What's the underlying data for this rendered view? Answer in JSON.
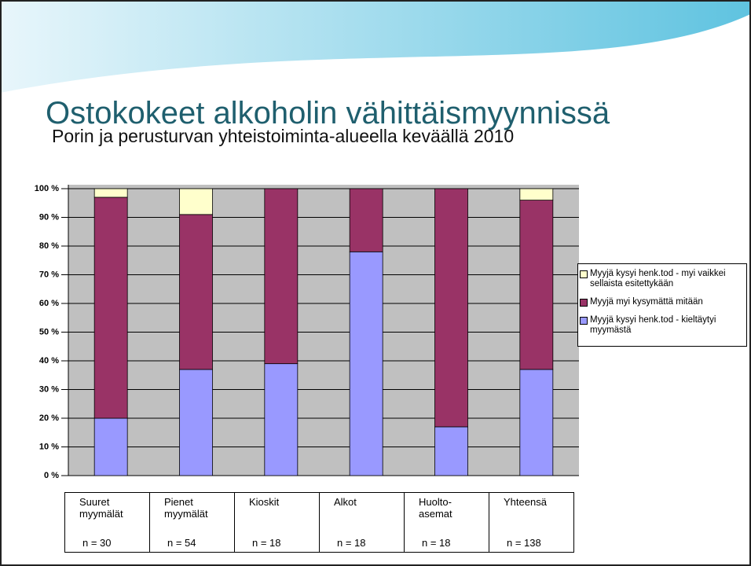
{
  "chart_data": {
    "type": "stacked_bar",
    "title": "Ostokokeet alkoholin vähittäismyynnissä",
    "subtitle": "Porin ja perusturvan yhteistoiminta-alueella keväällä 2010",
    "categories": [
      "Suuret myymälät",
      "Pienet myymälät",
      "Kioskit",
      "Alkot",
      "Huolto-asemat",
      "Yhteensä"
    ],
    "sample_sizes": [
      "n = 30",
      "n = 54",
      "n = 18",
      "n = 18",
      "n = 18",
      "n = 138"
    ],
    "series": [
      {
        "name": "Myyjä kysyi henk.tod - kieltäytyi myymästä",
        "color": "#9999ff",
        "values": [
          20,
          37,
          39,
          78,
          17,
          37
        ]
      },
      {
        "name": "Myyjä myi kysymättä mitään",
        "color": "#993366",
        "values": [
          77,
          54,
          61,
          22,
          83,
          59
        ]
      },
      {
        "name": "Myyjä kysyi henk.tod - myi vaikkei sellaista esitettykään",
        "color": "#ffffcc",
        "values": [
          3,
          9,
          0,
          0,
          0,
          4
        ]
      }
    ],
    "ylim": [
      0,
      100
    ],
    "yticks": [
      {
        "value": 0,
        "label": "0 %"
      },
      {
        "value": 10,
        "label": "10 %"
      },
      {
        "value": 20,
        "label": "20 %"
      },
      {
        "value": 30,
        "label": "30 %"
      },
      {
        "value": 40,
        "label": "40 %"
      },
      {
        "value": 50,
        "label": "50 %"
      },
      {
        "value": 60,
        "label": "60 %"
      },
      {
        "value": 70,
        "label": "70 %"
      },
      {
        "value": 80,
        "label": "80 %"
      },
      {
        "value": 90,
        "label": "90 %"
      },
      {
        "value": 100,
        "label": "100 %"
      }
    ],
    "grid": true
  }
}
